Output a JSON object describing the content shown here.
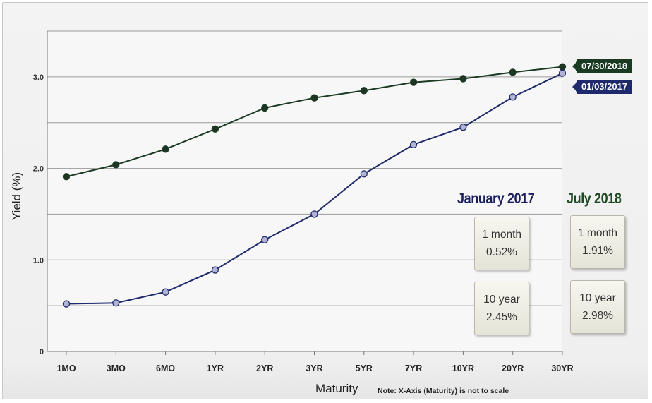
{
  "chart_data": {
    "type": "line",
    "categories": [
      "1MO",
      "3MO",
      "6MO",
      "1YR",
      "2YR",
      "3YR",
      "5YR",
      "7YR",
      "10YR",
      "20YR",
      "30YR"
    ],
    "series": [
      {
        "name": "07/30/2018",
        "color": "#1a3a22",
        "marker_color": "#1f3524",
        "values": [
          1.91,
          2.04,
          2.21,
          2.43,
          2.66,
          2.77,
          2.85,
          2.94,
          2.98,
          3.05,
          3.11
        ]
      },
      {
        "name": "01/03/2017",
        "color": "#1e2a6b",
        "marker_color": "#b0b3d3",
        "values": [
          0.52,
          0.53,
          0.65,
          0.89,
          1.22,
          1.5,
          1.94,
          2.26,
          2.45,
          2.78,
          3.04
        ]
      }
    ],
    "ylim": [
      0,
      3.5
    ],
    "yticks": [
      "0",
      "1.0",
      "2.0",
      "3.0"
    ],
    "ytick_values": [
      0,
      1,
      2,
      3
    ],
    "gridlines": [
      0.5,
      1.0,
      1.5,
      2.0,
      2.5,
      3.0,
      3.5
    ],
    "xlabel": "Maturity",
    "ylabel": "Yield (%)",
    "note": "Note: X-Axis (Maturity) is not to scale",
    "grid": true
  },
  "legend_tags": {
    "series_a": "07/30/2018",
    "series_b": "01/03/2017"
  },
  "panels": {
    "jan_heading": "January 2017",
    "jul_heading": "July 2018",
    "jan_1m_label": "1 month",
    "jan_1m_value": "0.52%",
    "jan_10y_label": "10 year",
    "jan_10y_value": "2.45%",
    "jul_1m_label": "1 month",
    "jul_1m_value": "1.91%",
    "jul_10y_label": "10 year",
    "jul_10y_value": "2.98%"
  }
}
